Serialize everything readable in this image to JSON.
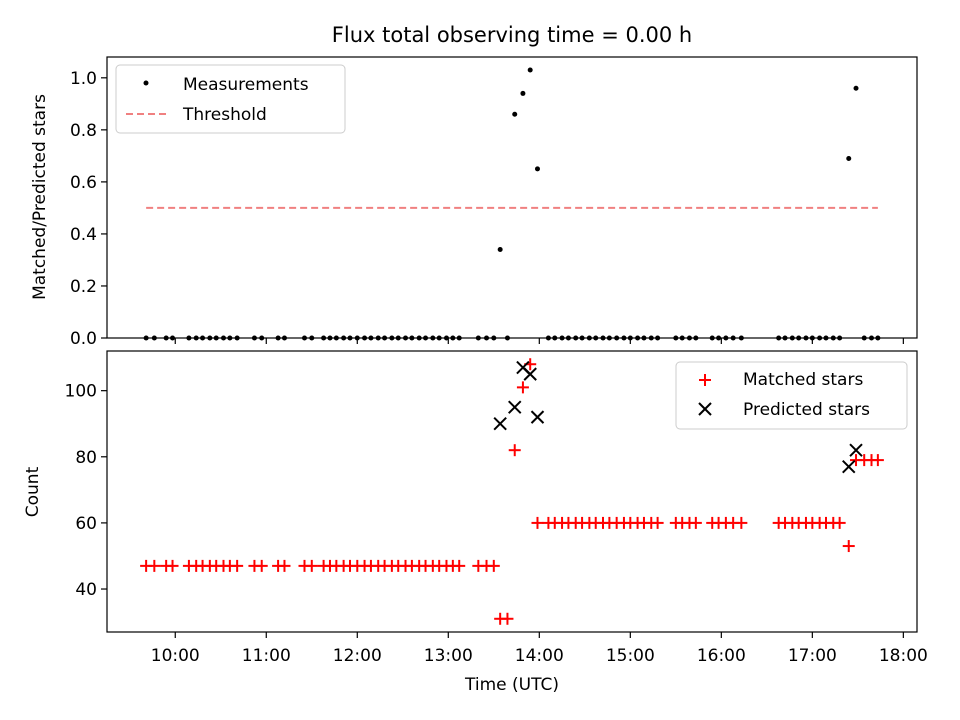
{
  "chart_data": {
    "title": "Flux total observing time = 0.00 h",
    "xlabel": "Time (UTC)",
    "xlim_hours": [
      9.25,
      18.15
    ],
    "x_ticks": [
      "10:00",
      "11:00",
      "12:00",
      "13:00",
      "14:00",
      "15:00",
      "16:00",
      "17:00",
      "18:00"
    ],
    "x_tick_hours": [
      10,
      11,
      12,
      13,
      14,
      15,
      16,
      17,
      18
    ],
    "panels": [
      {
        "type": "scatter",
        "ylabel": "Matched/Predicted stars",
        "ylim": [
          0,
          1.08
        ],
        "y_ticks": [
          "0.0",
          "0.2",
          "0.4",
          "0.6",
          "0.8",
          "1.0"
        ],
        "y_tick_values": [
          0,
          0.2,
          0.4,
          0.6,
          0.8,
          1.0
        ],
        "legend": "upper-left",
        "series": [
          {
            "name": "Measurements",
            "marker": "dot",
            "color": "#000000",
            "points": [
              [
                9.68,
                0
              ],
              [
                9.77,
                0
              ],
              [
                9.9,
                0
              ],
              [
                9.97,
                0
              ],
              [
                10.15,
                0
              ],
              [
                10.23,
                0
              ],
              [
                10.3,
                0
              ],
              [
                10.38,
                0
              ],
              [
                10.45,
                0
              ],
              [
                10.53,
                0
              ],
              [
                10.6,
                0
              ],
              [
                10.68,
                0
              ],
              [
                10.87,
                0
              ],
              [
                10.95,
                0
              ],
              [
                11.13,
                0
              ],
              [
                11.2,
                0
              ],
              [
                11.42,
                0
              ],
              [
                11.5,
                0
              ],
              [
                11.63,
                0
              ],
              [
                11.7,
                0
              ],
              [
                11.77,
                0
              ],
              [
                11.85,
                0
              ],
              [
                11.92,
                0
              ],
              [
                12.0,
                0
              ],
              [
                12.08,
                0
              ],
              [
                12.15,
                0
              ],
              [
                12.23,
                0
              ],
              [
                12.3,
                0
              ],
              [
                12.38,
                0
              ],
              [
                12.45,
                0
              ],
              [
                12.53,
                0
              ],
              [
                12.6,
                0
              ],
              [
                12.68,
                0
              ],
              [
                12.75,
                0
              ],
              [
                12.83,
                0
              ],
              [
                12.9,
                0
              ],
              [
                12.98,
                0
              ],
              [
                13.05,
                0
              ],
              [
                13.12,
                0
              ],
              [
                13.33,
                0
              ],
              [
                13.42,
                0
              ],
              [
                13.5,
                0
              ],
              [
                13.57,
                0.34
              ],
              [
                13.65,
                0
              ],
              [
                13.73,
                0.86
              ],
              [
                13.82,
                0.94
              ],
              [
                13.9,
                1.03
              ],
              [
                13.98,
                0.65
              ],
              [
                14.1,
                0
              ],
              [
                14.17,
                0
              ],
              [
                14.25,
                0
              ],
              [
                14.32,
                0
              ],
              [
                14.4,
                0
              ],
              [
                14.47,
                0
              ],
              [
                14.55,
                0
              ],
              [
                14.62,
                0
              ],
              [
                14.7,
                0
              ],
              [
                14.77,
                0
              ],
              [
                14.85,
                0
              ],
              [
                14.93,
                0
              ],
              [
                15.0,
                0
              ],
              [
                15.08,
                0
              ],
              [
                15.15,
                0
              ],
              [
                15.23,
                0
              ],
              [
                15.3,
                0
              ],
              [
                15.5,
                0
              ],
              [
                15.57,
                0
              ],
              [
                15.65,
                0
              ],
              [
                15.72,
                0
              ],
              [
                15.9,
                0
              ],
              [
                15.97,
                0
              ],
              [
                16.05,
                0
              ],
              [
                16.13,
                0
              ],
              [
                16.22,
                0
              ],
              [
                16.63,
                0
              ],
              [
                16.7,
                0
              ],
              [
                16.78,
                0
              ],
              [
                16.85,
                0
              ],
              [
                16.93,
                0
              ],
              [
                17.0,
                0
              ],
              [
                17.08,
                0
              ],
              [
                17.15,
                0
              ],
              [
                17.23,
                0
              ],
              [
                17.3,
                0
              ],
              [
                17.4,
                0.69
              ],
              [
                17.48,
                0.96
              ],
              [
                17.57,
                0
              ],
              [
                17.65,
                0
              ],
              [
                17.72,
                0
              ]
            ]
          },
          {
            "name": "Threshold",
            "marker": "dashed-line",
            "color": "#f08080",
            "points": [
              [
                9.68,
                0.5
              ],
              [
                17.72,
                0.5
              ]
            ]
          }
        ]
      },
      {
        "type": "scatter",
        "ylabel": "Count",
        "ylim": [
          27,
          112
        ],
        "y_ticks": [
          "40",
          "60",
          "80",
          "100"
        ],
        "y_tick_values": [
          40,
          60,
          80,
          100
        ],
        "legend": "upper-right",
        "series": [
          {
            "name": "Matched stars",
            "marker": "plus",
            "color": "#ff0000",
            "points": [
              [
                9.68,
                47
              ],
              [
                9.77,
                47
              ],
              [
                9.9,
                47
              ],
              [
                9.97,
                47
              ],
              [
                10.15,
                47
              ],
              [
                10.23,
                47
              ],
              [
                10.3,
                47
              ],
              [
                10.38,
                47
              ],
              [
                10.45,
                47
              ],
              [
                10.53,
                47
              ],
              [
                10.6,
                47
              ],
              [
                10.68,
                47
              ],
              [
                10.87,
                47
              ],
              [
                10.95,
                47
              ],
              [
                11.13,
                47
              ],
              [
                11.2,
                47
              ],
              [
                11.42,
                47
              ],
              [
                11.5,
                47
              ],
              [
                11.63,
                47
              ],
              [
                11.7,
                47
              ],
              [
                11.77,
                47
              ],
              [
                11.85,
                47
              ],
              [
                11.92,
                47
              ],
              [
                12.0,
                47
              ],
              [
                12.08,
                47
              ],
              [
                12.15,
                47
              ],
              [
                12.23,
                47
              ],
              [
                12.3,
                47
              ],
              [
                12.38,
                47
              ],
              [
                12.45,
                47
              ],
              [
                12.53,
                47
              ],
              [
                12.6,
                47
              ],
              [
                12.68,
                47
              ],
              [
                12.75,
                47
              ],
              [
                12.83,
                47
              ],
              [
                12.9,
                47
              ],
              [
                12.98,
                47
              ],
              [
                13.05,
                47
              ],
              [
                13.12,
                47
              ],
              [
                13.33,
                47
              ],
              [
                13.42,
                47
              ],
              [
                13.5,
                47
              ],
              [
                13.57,
                31
              ],
              [
                13.65,
                31
              ],
              [
                13.73,
                82
              ],
              [
                13.82,
                101
              ],
              [
                13.9,
                108
              ],
              [
                13.98,
                60
              ],
              [
                14.1,
                60
              ],
              [
                14.17,
                60
              ],
              [
                14.25,
                60
              ],
              [
                14.32,
                60
              ],
              [
                14.4,
                60
              ],
              [
                14.47,
                60
              ],
              [
                14.55,
                60
              ],
              [
                14.62,
                60
              ],
              [
                14.7,
                60
              ],
              [
                14.77,
                60
              ],
              [
                14.85,
                60
              ],
              [
                14.93,
                60
              ],
              [
                15.0,
                60
              ],
              [
                15.08,
                60
              ],
              [
                15.15,
                60
              ],
              [
                15.23,
                60
              ],
              [
                15.3,
                60
              ],
              [
                15.5,
                60
              ],
              [
                15.57,
                60
              ],
              [
                15.65,
                60
              ],
              [
                15.72,
                60
              ],
              [
                15.9,
                60
              ],
              [
                15.97,
                60
              ],
              [
                16.05,
                60
              ],
              [
                16.13,
                60
              ],
              [
                16.22,
                60
              ],
              [
                16.63,
                60
              ],
              [
                16.7,
                60
              ],
              [
                16.78,
                60
              ],
              [
                16.85,
                60
              ],
              [
                16.93,
                60
              ],
              [
                17.0,
                60
              ],
              [
                17.08,
                60
              ],
              [
                17.15,
                60
              ],
              [
                17.23,
                60
              ],
              [
                17.3,
                60
              ],
              [
                17.4,
                53
              ],
              [
                17.48,
                79
              ],
              [
                17.57,
                79
              ],
              [
                17.65,
                79
              ],
              [
                17.72,
                79
              ]
            ]
          },
          {
            "name": "Predicted stars",
            "marker": "x",
            "color": "#000000",
            "points": [
              [
                13.57,
                90
              ],
              [
                13.73,
                95
              ],
              [
                13.82,
                107
              ],
              [
                13.9,
                105
              ],
              [
                13.98,
                92
              ],
              [
                17.4,
                77
              ],
              [
                17.48,
                82
              ]
            ]
          }
        ]
      }
    ]
  }
}
